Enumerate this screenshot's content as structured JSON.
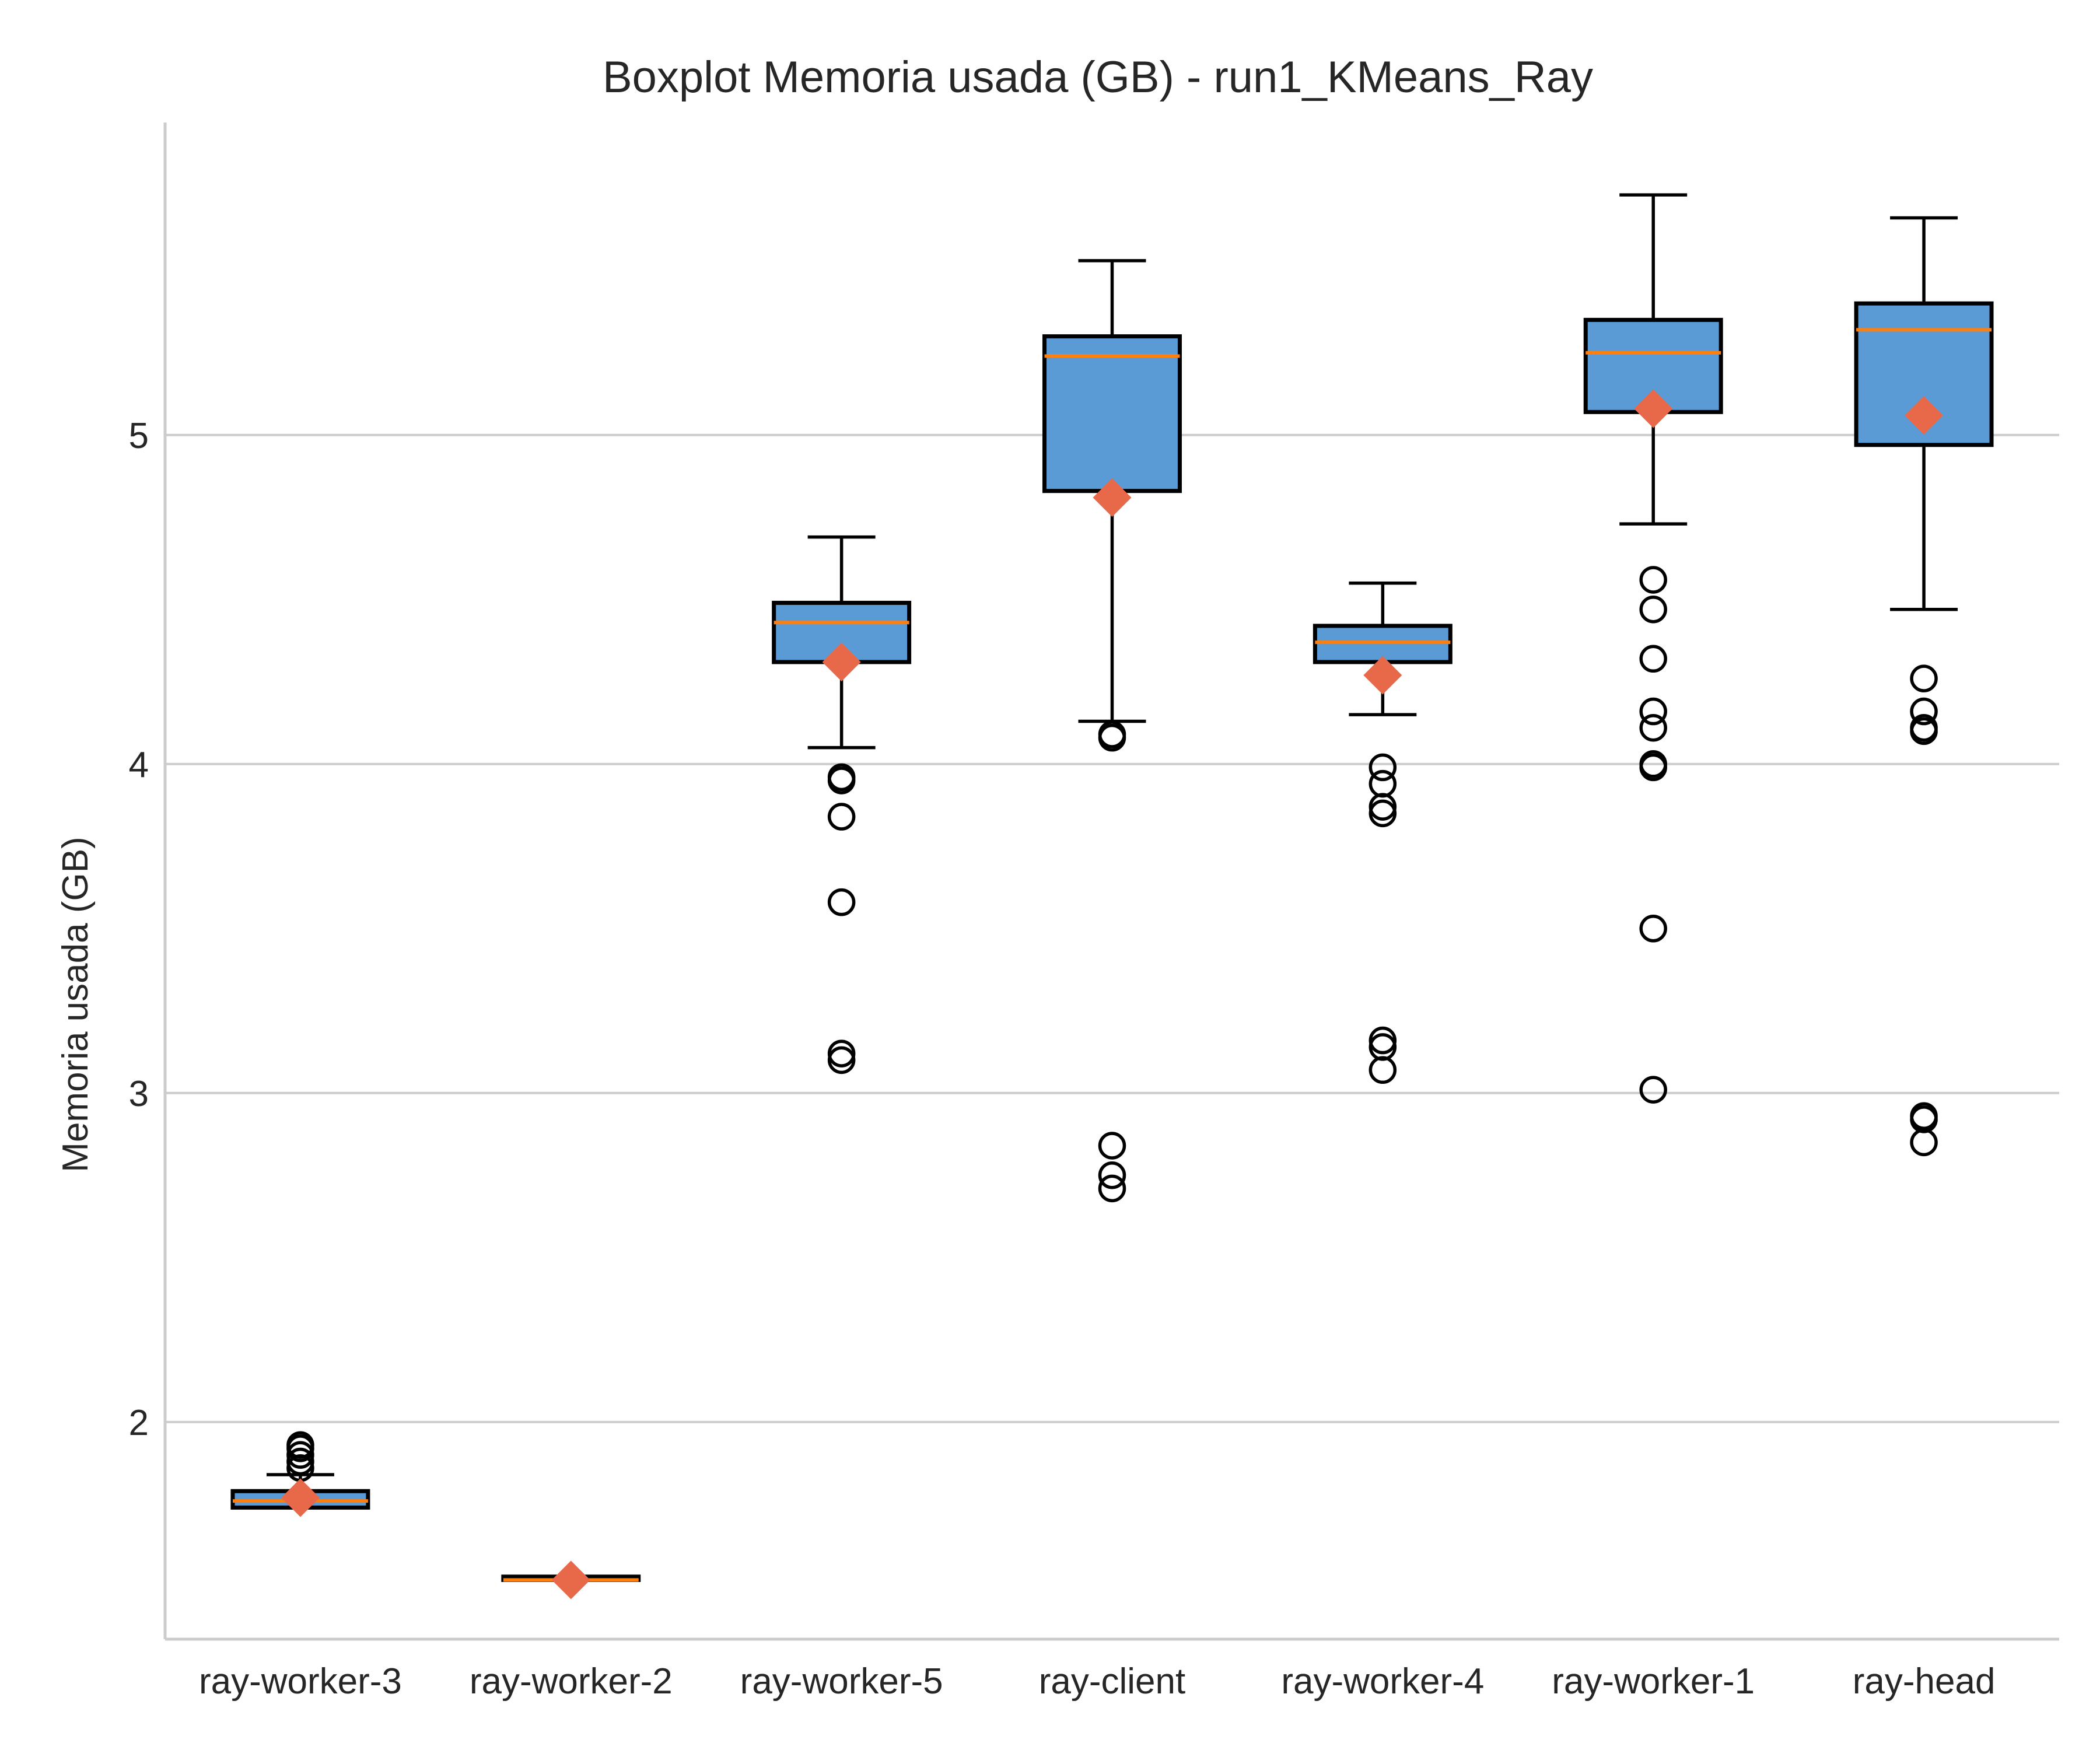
{
  "chart_data": {
    "type": "boxplot",
    "title": "Boxplot Memoria usada (GB) - run1_KMeans_Ray",
    "xlabel": "",
    "ylabel": "Memoria usada (GB)",
    "ylim": [
      1.34,
      5.95
    ],
    "yticks": [
      2,
      3,
      4,
      5
    ],
    "grid": "horizontal",
    "categories": [
      "ray-worker-3",
      "ray-worker-2",
      "ray-worker-5",
      "ray-client",
      "ray-worker-4",
      "ray-worker-1",
      "ray-head"
    ],
    "boxes": [
      {
        "category": "ray-worker-3",
        "whisker_low": 1.74,
        "q1": 1.74,
        "median": 1.76,
        "q3": 1.79,
        "whisker_high": 1.84,
        "mean": 1.77,
        "outliers": [
          1.86,
          1.88,
          1.9,
          1.92,
          1.93
        ]
      },
      {
        "category": "ray-worker-2",
        "whisker_low": 1.52,
        "q1": 1.52,
        "median": 1.52,
        "q3": 1.53,
        "whisker_high": 1.53,
        "mean": 1.52,
        "outliers": []
      },
      {
        "category": "ray-worker-5",
        "whisker_low": 4.05,
        "q1": 4.31,
        "median": 4.43,
        "q3": 4.49,
        "whisker_high": 4.69,
        "mean": 4.31,
        "outliers": [
          3.96,
          3.95,
          3.84,
          3.58,
          3.12,
          3.1
        ]
      },
      {
        "category": "ray-client",
        "whisker_low": 4.13,
        "q1": 4.83,
        "median": 5.24,
        "q3": 5.3,
        "whisker_high": 5.53,
        "mean": 4.81,
        "outliers": [
          4.09,
          4.08,
          2.84,
          2.75,
          2.71
        ]
      },
      {
        "category": "ray-worker-4",
        "whisker_low": 4.15,
        "q1": 4.31,
        "median": 4.37,
        "q3": 4.42,
        "whisker_high": 4.55,
        "mean": 4.27,
        "outliers": [
          3.99,
          3.94,
          3.87,
          3.85,
          3.16,
          3.14,
          3.07
        ]
      },
      {
        "category": "ray-worker-1",
        "whisker_low": 4.73,
        "q1": 5.07,
        "median": 5.25,
        "q3": 5.35,
        "whisker_high": 5.73,
        "mean": 5.08,
        "outliers": [
          4.56,
          4.47,
          4.32,
          4.16,
          4.11,
          4.0,
          3.99,
          3.5,
          3.01
        ]
      },
      {
        "category": "ray-head",
        "whisker_low": 4.47,
        "q1": 4.97,
        "median": 5.32,
        "q3": 5.4,
        "whisker_high": 5.66,
        "mean": 5.06,
        "outliers": [
          4.26,
          4.16,
          4.11,
          4.1,
          2.93,
          2.92,
          2.85
        ]
      }
    ],
    "colors": {
      "box_fill": "#5b9bd5",
      "box_edge": "#000000",
      "median": "#ff7f0e",
      "mean_marker": "#e8694a",
      "grid": "#cccccc",
      "axis": "#cccccc"
    }
  }
}
